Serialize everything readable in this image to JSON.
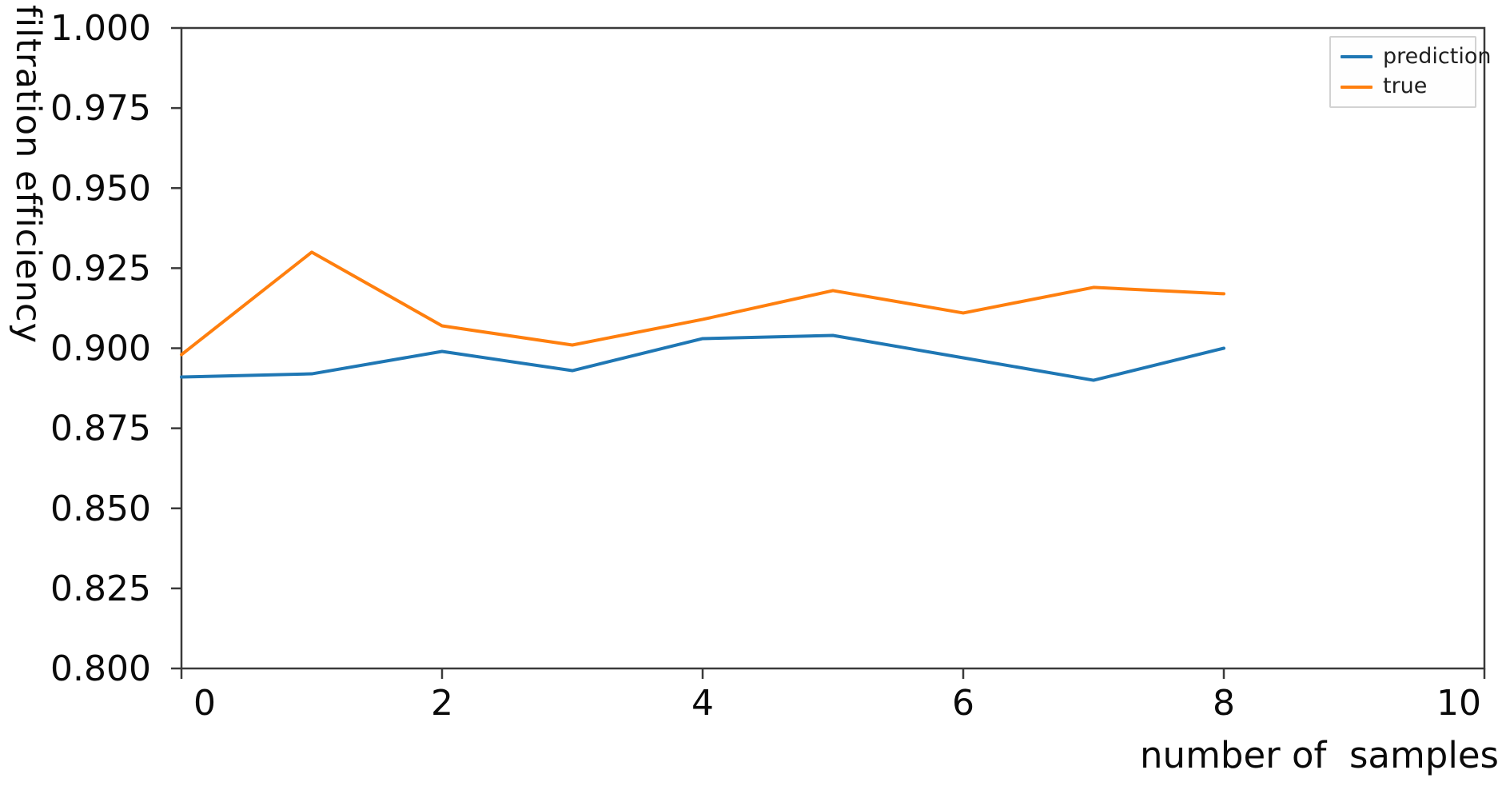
{
  "figure": {
    "background": "#ffffff",
    "axis_color": "#3a3a3a",
    "text_color": "#0a0a0a"
  },
  "chart_data": {
    "type": "line",
    "title": "",
    "xlabel": "number of  samples",
    "ylabel": "filtration efficiency",
    "x": [
      0,
      1,
      2,
      3,
      4,
      5,
      6,
      7,
      8
    ],
    "series": [
      {
        "name": "prediction",
        "color": "#1f77b4",
        "values": [
          0.891,
          0.892,
          0.899,
          0.893,
          0.903,
          0.904,
          0.897,
          0.89,
          0.9
        ]
      },
      {
        "name": "true",
        "color": "#ff7f0e",
        "values": [
          0.898,
          0.93,
          0.907,
          0.901,
          0.909,
          0.918,
          0.911,
          0.919,
          0.917
        ]
      }
    ],
    "xlim": [
      0,
      10
    ],
    "ylim": [
      0.8,
      1.0
    ],
    "xticks": [
      0,
      2,
      4,
      6,
      8,
      10
    ],
    "xticklabels": [
      "0",
      "2",
      "4",
      "6",
      "8",
      "10"
    ],
    "yticks": [
      0.8,
      0.825,
      0.85,
      0.875,
      0.9,
      0.925,
      0.95,
      0.975,
      1.0
    ],
    "yticklabels": [
      "0.800",
      "0.825",
      "0.850",
      "0.875",
      "0.900",
      "0.925",
      "0.950",
      "0.975",
      "1.000"
    ],
    "grid": false,
    "legend_position": "upper right"
  }
}
